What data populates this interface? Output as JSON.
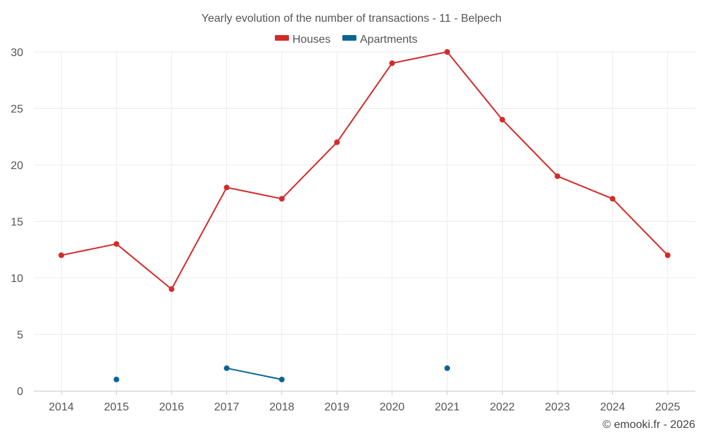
{
  "chart_data": {
    "type": "line",
    "title": "Yearly evolution of the number of transactions - 11 - Belpech",
    "categories": [
      "2014",
      "2015",
      "2016",
      "2017",
      "2018",
      "2019",
      "2020",
      "2021",
      "2022",
      "2023",
      "2024",
      "2025"
    ],
    "ylim": [
      0,
      30
    ],
    "yticks": [
      0,
      5,
      10,
      15,
      20,
      25,
      30
    ],
    "grid": true,
    "legend_position": "top-center",
    "series": [
      {
        "name": "Houses",
        "color": "#d32a2a",
        "values": [
          12,
          13,
          9,
          18,
          17,
          22,
          29,
          30,
          24,
          19,
          17,
          12
        ]
      },
      {
        "name": "Apartments",
        "color": "#0a6496",
        "values": [
          null,
          1,
          null,
          2,
          1,
          null,
          null,
          2,
          null,
          null,
          null,
          null
        ]
      }
    ],
    "credit": "© emooki.fr - 2026"
  }
}
